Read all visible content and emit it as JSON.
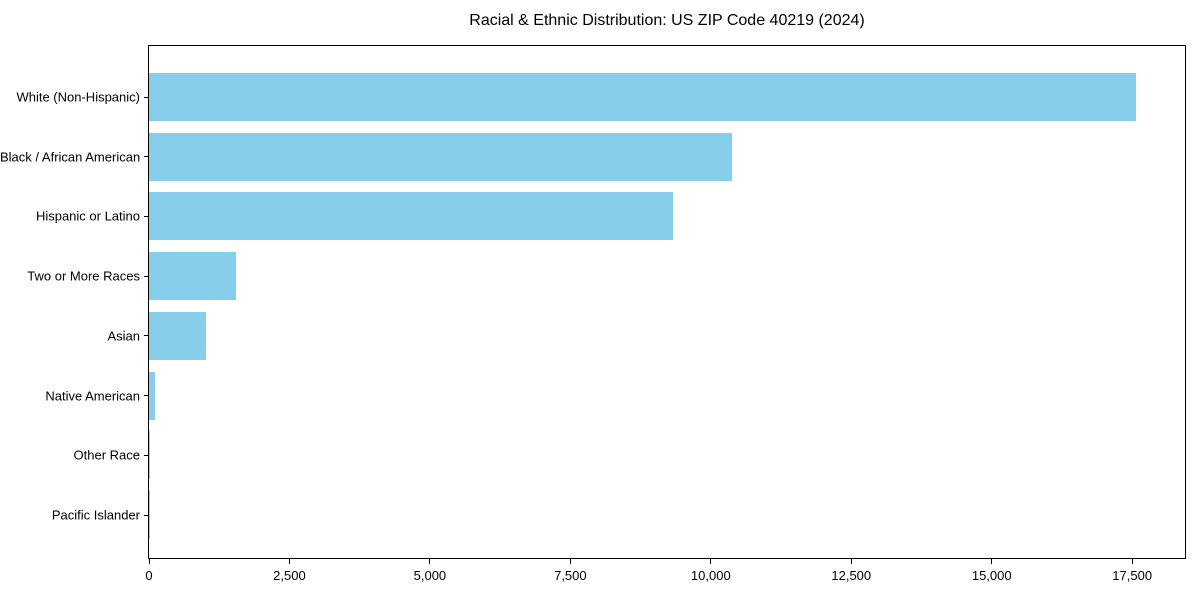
{
  "title": "Racial & Ethnic Distribution: US ZIP Code 40219 (2024)",
  "colors": {
    "bar": "#87CEEB",
    "axis": "#000000",
    "text": "#000000",
    "background": "#FFFFFF"
  },
  "chart_data": {
    "type": "bar",
    "orientation": "horizontal",
    "title": "Racial & Ethnic Distribution: US ZIP Code 40219 (2024)",
    "categories": [
      "White (Non-Hispanic)",
      "Black / African American",
      "Hispanic or Latino",
      "Two or More Races",
      "Asian",
      "Native American",
      "Other Race",
      "Pacific Islander"
    ],
    "values": [
      17560,
      10380,
      9330,
      1540,
      1010,
      105,
      25,
      12
    ],
    "xlabel": "",
    "ylabel": "",
    "xlim": [
      0,
      18440
    ],
    "x_ticks": [
      0,
      2500,
      5000,
      7500,
      10000,
      12500,
      15000,
      17500
    ],
    "x_tick_labels": [
      "0",
      "2,500",
      "5,000",
      "7,500",
      "10,000",
      "12,500",
      "15,000",
      "17,500"
    ],
    "grid": false,
    "legend": null,
    "bar_color": "#87CEEB"
  }
}
